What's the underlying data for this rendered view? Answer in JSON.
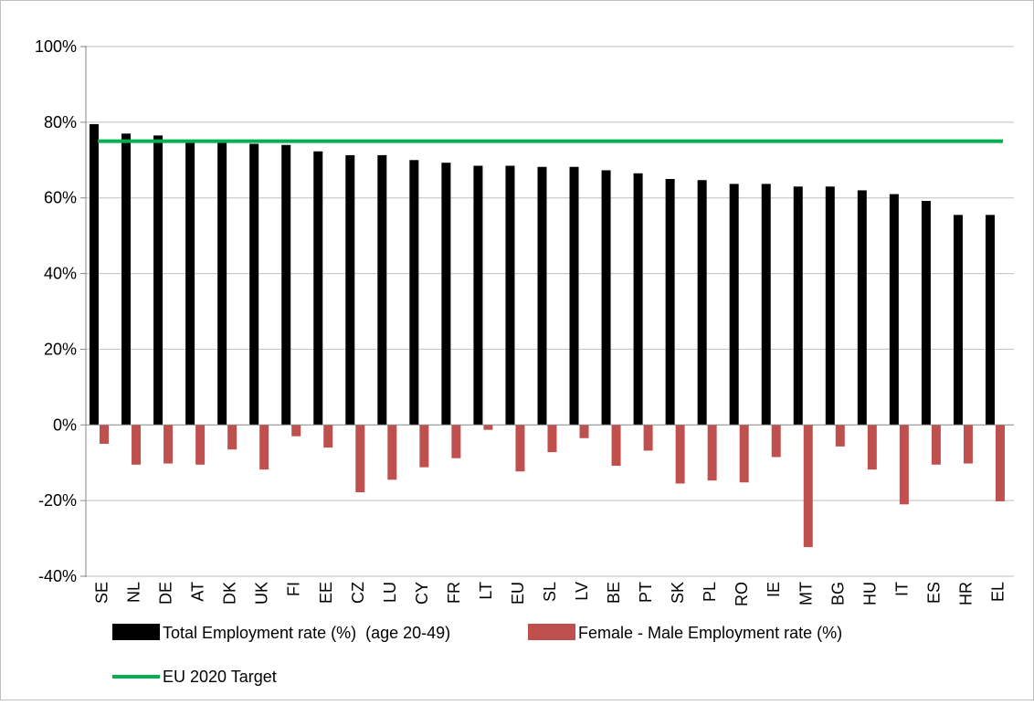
{
  "chart_data": {
    "type": "bar",
    "title": "",
    "xlabel": "",
    "ylabel": "",
    "ylim": [
      -40,
      100
    ],
    "yticks": [
      100,
      80,
      60,
      40,
      20,
      0,
      -20,
      -40
    ],
    "ytick_labels": [
      "100%",
      "80%",
      "60%",
      "40%",
      "20%",
      "0%",
      "-20%",
      "-40%"
    ],
    "grid": true,
    "legend_position": "bottom",
    "categories": [
      "SE",
      "NL",
      "DE",
      "AT",
      "DK",
      "UK",
      "FI",
      "EE",
      "CZ",
      "LU",
      "CY",
      "FR",
      "LT",
      "EU",
      "SL",
      "LV",
      "BE",
      "PT",
      "SK",
      "PL",
      "RO",
      "IE",
      "MT",
      "BG",
      "HU",
      "IT",
      "ES",
      "HR",
      "EL"
    ],
    "series": [
      {
        "name": "Total Employment rate (%)  (age 20-49)",
        "color": "#000000",
        "values": [
          79.5,
          77.0,
          76.5,
          75.2,
          74.8,
          74.3,
          74.0,
          72.3,
          71.3,
          71.3,
          70.0,
          69.3,
          68.5,
          68.5,
          68.2,
          68.2,
          67.3,
          66.5,
          65.0,
          64.7,
          63.7,
          63.7,
          63.0,
          63.0,
          62.0,
          61.0,
          59.2,
          55.5,
          55.5
        ]
      },
      {
        "name": "Female - Male Employment rate (%)",
        "color": "#C0504D",
        "values": [
          -5.0,
          -10.5,
          -10.2,
          -10.5,
          -6.5,
          -11.8,
          -3.0,
          -6.0,
          -17.8,
          -14.5,
          -11.2,
          -8.8,
          -1.3,
          -12.3,
          -7.2,
          -3.5,
          -10.8,
          -6.8,
          -15.5,
          -14.7,
          -15.2,
          -8.5,
          -32.3,
          -5.7,
          -11.8,
          -21.0,
          -10.5,
          -10.2,
          -20.2
        ]
      }
    ],
    "target_line": {
      "name": "EU 2020 Target",
      "value": 75,
      "color": "#00B050"
    }
  }
}
